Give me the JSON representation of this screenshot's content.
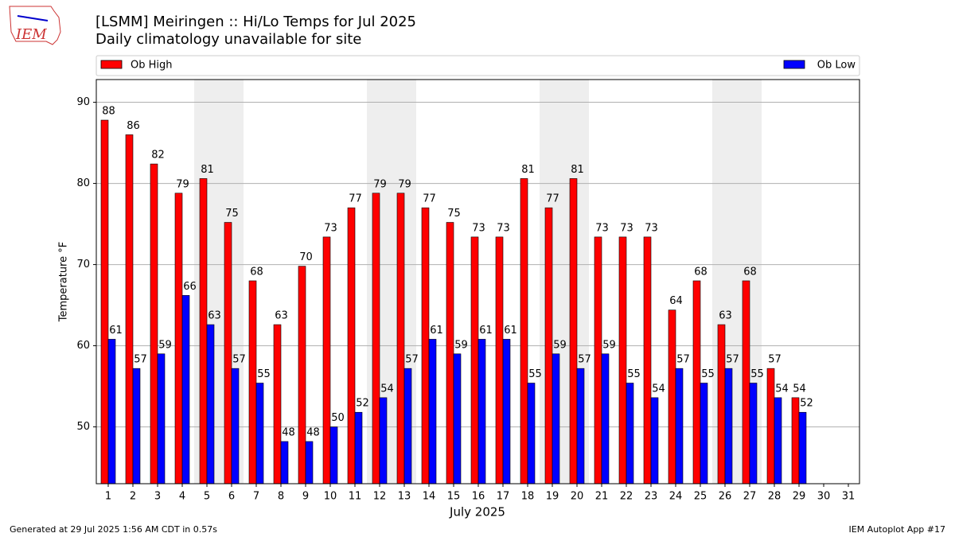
{
  "logo_text": "IEM",
  "footer_left": "Generated at 29 Jul 2025 1:56 AM CDT in 0.57s",
  "footer_right": "IEM Autoplot App #17",
  "chart_data": {
    "type": "bar",
    "title": "[LSMM] Meiringen :: Hi/Lo Temps for Jul 2025",
    "subtitle": "Daily climatology unavailable for site",
    "ylabel": "Temperature °F",
    "xlabel": "July 2025",
    "categories": [
      "1",
      "2",
      "3",
      "4",
      "5",
      "6",
      "7",
      "8",
      "9",
      "10",
      "11",
      "12",
      "13",
      "14",
      "15",
      "16",
      "17",
      "18",
      "19",
      "20",
      "21",
      "22",
      "23",
      "24",
      "25",
      "26",
      "27",
      "28",
      "29",
      "30",
      "31"
    ],
    "series": [
      {
        "name": "Ob High",
        "color": "#ff0000",
        "values": [
          87.8,
          86,
          82.4,
          78.8,
          80.6,
          75.2,
          68,
          62.6,
          69.8,
          73.4,
          77,
          78.8,
          78.8,
          77,
          75.2,
          73.4,
          73.4,
          80.6,
          77,
          80.6,
          73.4,
          73.4,
          73.4,
          64.4,
          68,
          62.6,
          68,
          57.2,
          53.6,
          null,
          null
        ],
        "value_labels": [
          88,
          86,
          82,
          79,
          81,
          75,
          68,
          63,
          70,
          73,
          77,
          79,
          79,
          77,
          75,
          73,
          73,
          81,
          77,
          81,
          73,
          73,
          73,
          64,
          68,
          63,
          68,
          57,
          54,
          null,
          null
        ]
      },
      {
        "name": "Ob Low",
        "color": "#0000ff",
        "values": [
          60.8,
          57.2,
          59,
          66.2,
          62.6,
          57.2,
          55.4,
          48.2,
          48.2,
          50,
          51.8,
          53.6,
          57.2,
          60.8,
          59,
          60.8,
          60.8,
          55.4,
          59,
          57.2,
          59,
          55.4,
          53.6,
          57.2,
          55.4,
          57.2,
          55.4,
          53.6,
          51.8,
          null,
          null
        ],
        "value_labels": [
          61,
          57,
          59,
          66,
          63,
          57,
          55,
          48,
          48,
          50,
          52,
          54,
          57,
          61,
          59,
          61,
          61,
          55,
          59,
          57,
          59,
          55,
          54,
          57,
          55,
          57,
          55,
          54,
          52,
          null,
          null
        ]
      }
    ],
    "ylim": [
      43,
      92.8
    ],
    "yticks": [
      50,
      60,
      70,
      80,
      90
    ],
    "grid": true
  }
}
